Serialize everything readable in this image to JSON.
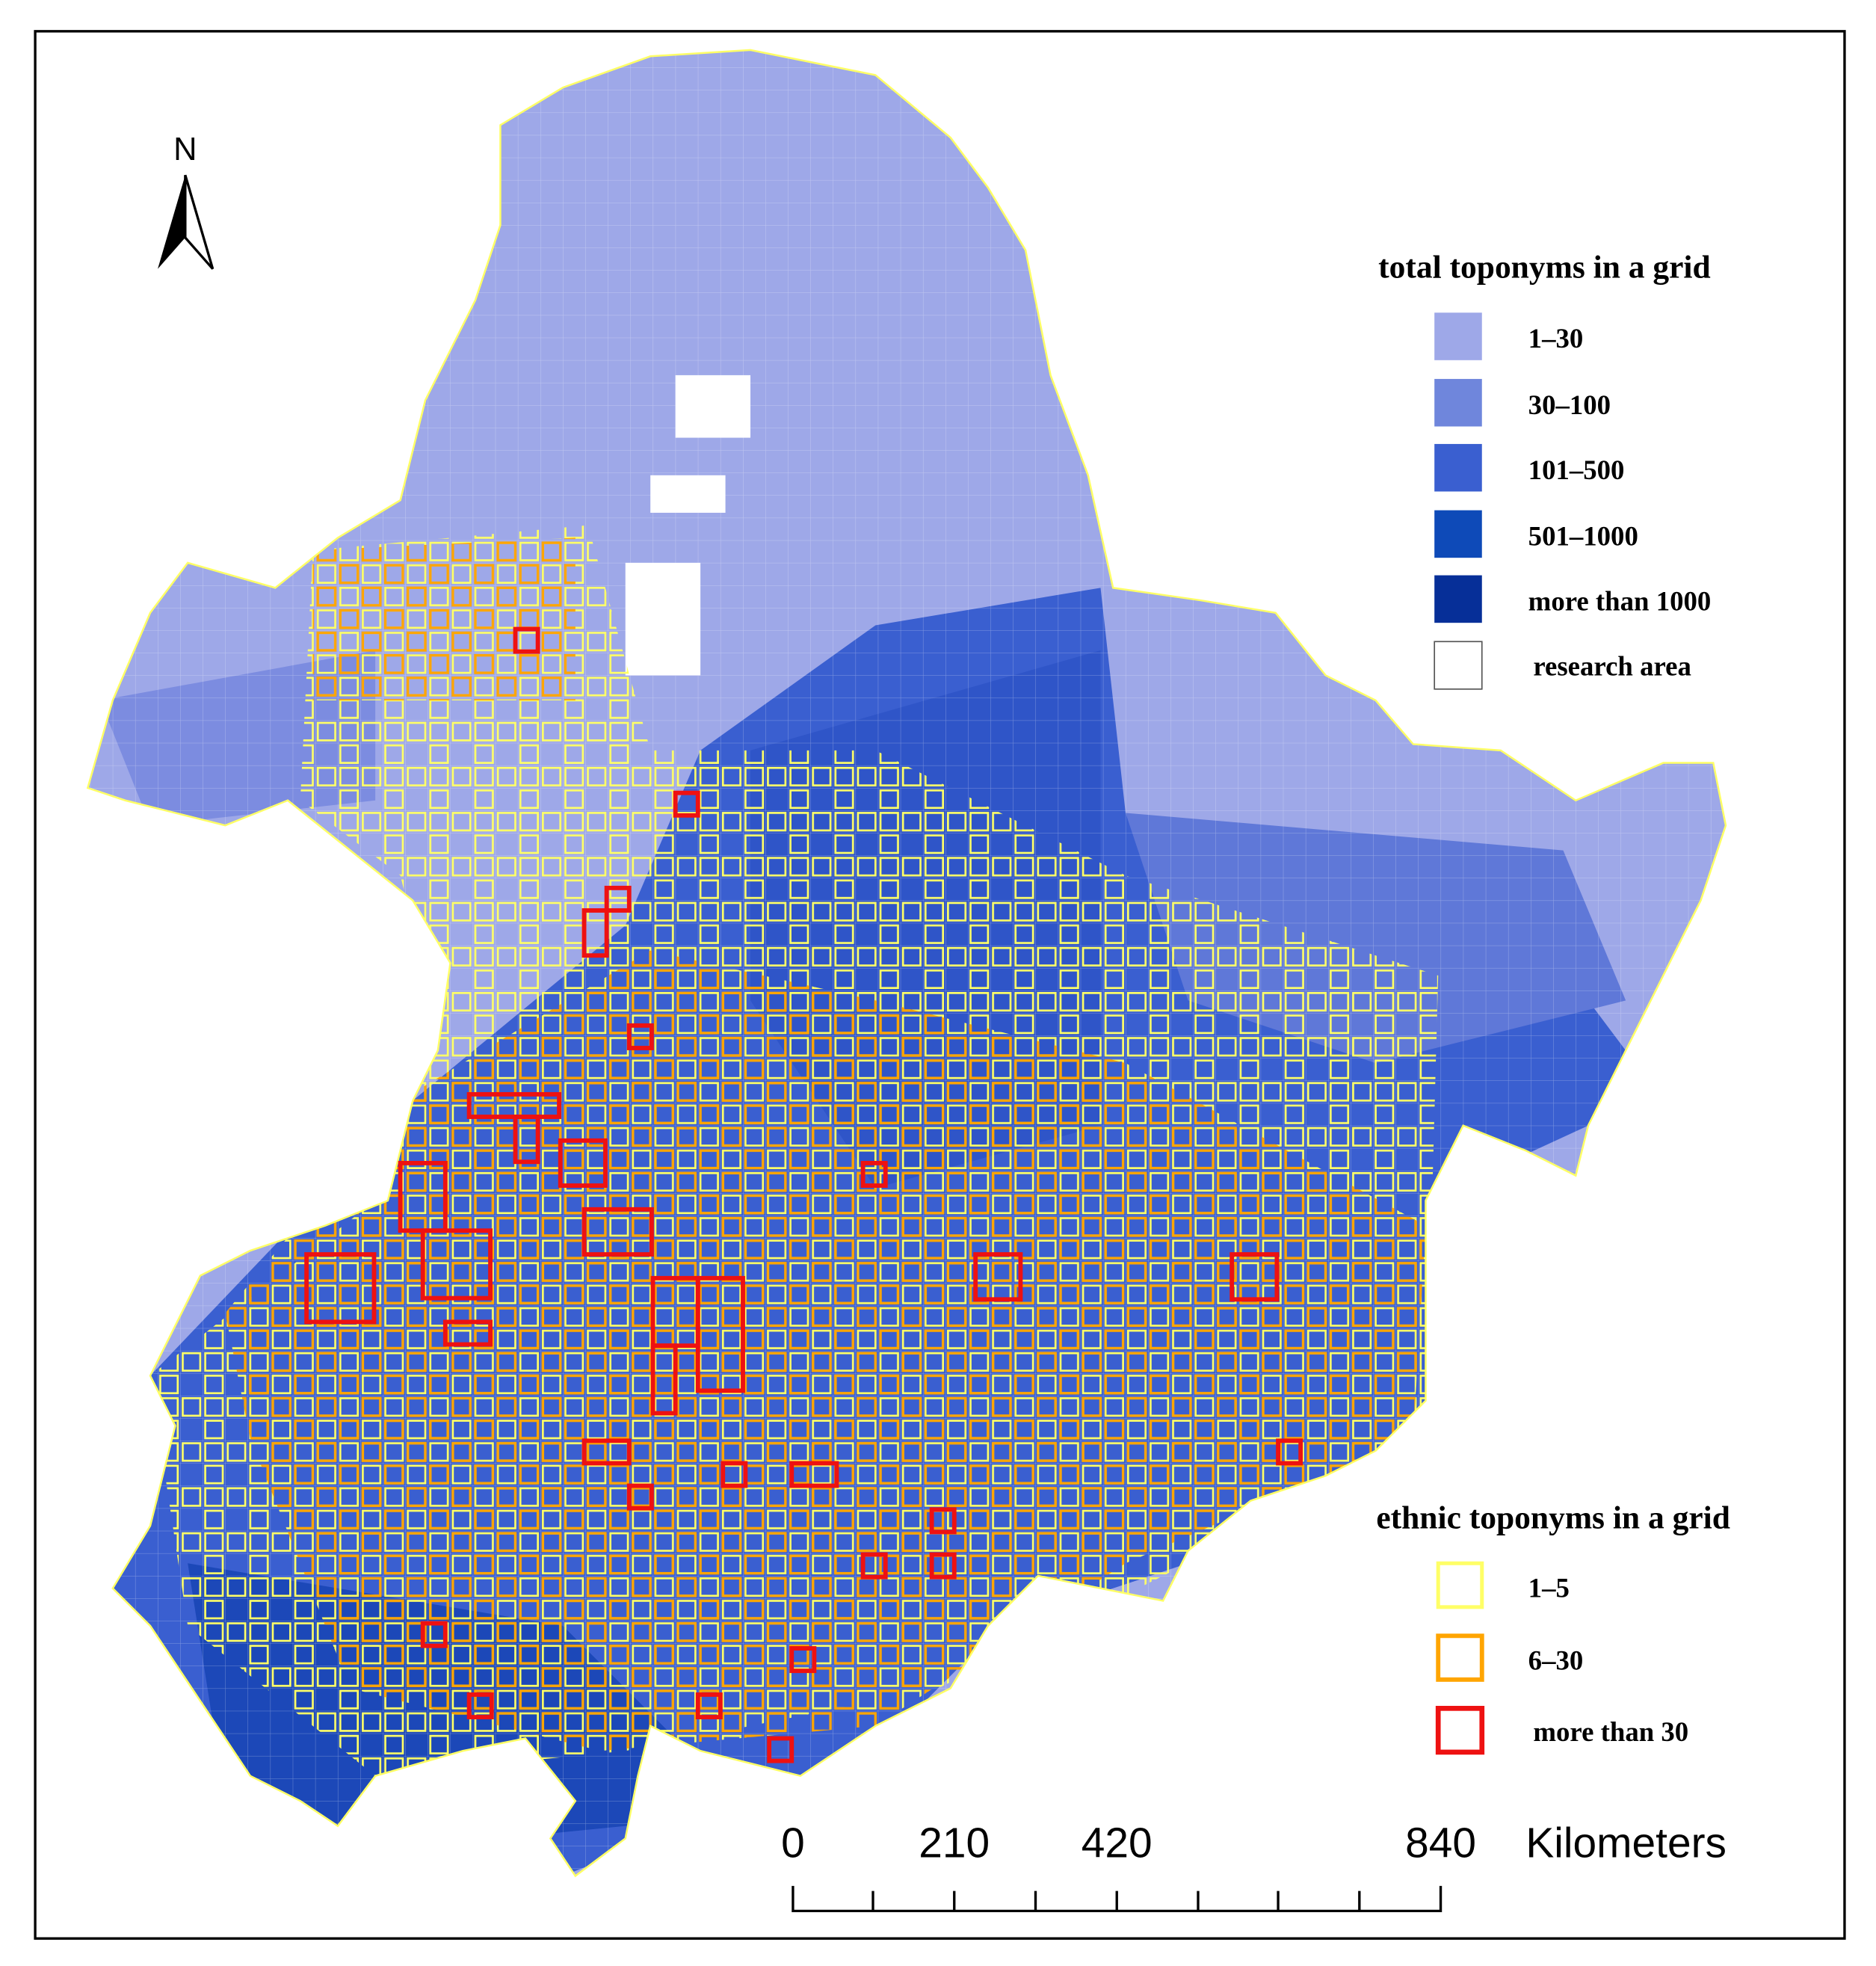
{
  "north_arrow": {
    "label": "N"
  },
  "legend_total": {
    "title": "total toponyms in a grid",
    "items": [
      "1–30",
      "30–100",
      "101–500",
      "501–1000",
      "more than 1000",
      "research area"
    ]
  },
  "legend_ethnic": {
    "title": "ethnic toponyms in a grid",
    "items": [
      "1–5",
      "6–30",
      "more than 30"
    ]
  },
  "scale_bar": {
    "ticks": [
      "0",
      "210",
      "420",
      "840"
    ],
    "unit": "Kilometers"
  }
}
